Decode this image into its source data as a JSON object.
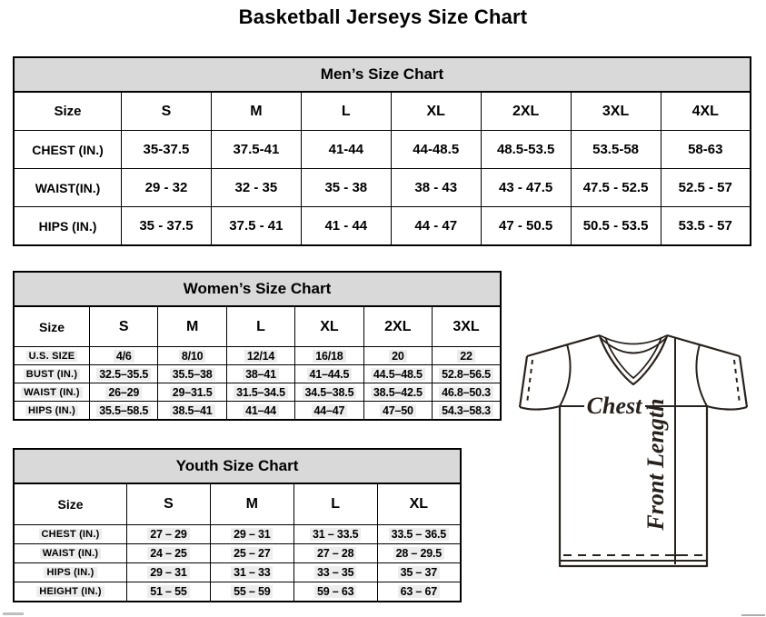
{
  "page_title": "Basketball Jerseys Size Chart",
  "mens_chart": {
    "title": "Men’s Size Chart",
    "header": [
      "Size",
      "S",
      "M",
      "L",
      "XL",
      "2XL",
      "3XL",
      "4XL"
    ],
    "rows": [
      {
        "label": "CHEST (IN.)",
        "values": [
          "35-37.5",
          "37.5-41",
          "41-44",
          "44-48.5",
          "48.5-53.5",
          "53.5-58",
          "58-63"
        ]
      },
      {
        "label": "WAIST(IN.)",
        "values": [
          "29 - 32",
          "32 - 35",
          "35 - 38",
          "38 - 43",
          "43 - 47.5",
          "47.5 - 52.5",
          "52.5 - 57"
        ]
      },
      {
        "label": "HIPS (IN.)",
        "values": [
          "35 - 37.5",
          "37.5 - 41",
          "41 - 44",
          "44 - 47",
          "47 - 50.5",
          "50.5 - 53.5",
          "53.5 - 57"
        ]
      }
    ]
  },
  "womens_chart": {
    "title": "Women’s Size Chart",
    "header": [
      "Size",
      "S",
      "M",
      "L",
      "XL",
      "2XL",
      "3XL"
    ],
    "rows": [
      {
        "label": "U.S. SIZE",
        "values": [
          "4/6",
          "8/10",
          "12/14",
          "16/18",
          "20",
          "22"
        ]
      },
      {
        "label": "BUST (IN.)",
        "values": [
          "32.5–35.5",
          "35.5–38",
          "38–41",
          "41–44.5",
          "44.5–48.5",
          "52.8–56.5"
        ]
      },
      {
        "label": "WAIST (IN.)",
        "values": [
          "26–29",
          "29–31.5",
          "31.5–34.5",
          "34.5–38.5",
          "38.5–42.5",
          "46.8–50.3"
        ]
      },
      {
        "label": "HIPS (IN.)",
        "values": [
          "35.5–58.5",
          "38.5–41",
          "41–44",
          "44–47",
          "47–50",
          "54.3–58.3"
        ]
      }
    ]
  },
  "youth_chart": {
    "title": "Youth Size Chart",
    "header": [
      "Size",
      "S",
      "M",
      "L",
      "XL"
    ],
    "rows": [
      {
        "label": "CHEST (IN.)",
        "values": [
          "27 – 29",
          "29 – 31",
          "31 – 33.5",
          "33.5 – 36.5"
        ]
      },
      {
        "label": "WAIST (IN.)",
        "values": [
          "24 – 25",
          "25 – 27",
          "27 – 28",
          "28 – 29.5"
        ]
      },
      {
        "label": "HIPS (IN.)",
        "values": [
          "29 – 31",
          "31 – 33",
          "33 – 35",
          "35 – 37"
        ]
      },
      {
        "label": "HEIGHT (IN.)",
        "values": [
          "51 – 55",
          "55 – 59",
          "59 – 63",
          "63 – 67"
        ]
      }
    ]
  },
  "diagram": {
    "chest_label": "Chest",
    "front_length_label": "Front Length"
  },
  "colors": {
    "header_band_bg": "#d9d9d9",
    "table_border": "#000000",
    "diagram_stroke": "#29211b"
  }
}
